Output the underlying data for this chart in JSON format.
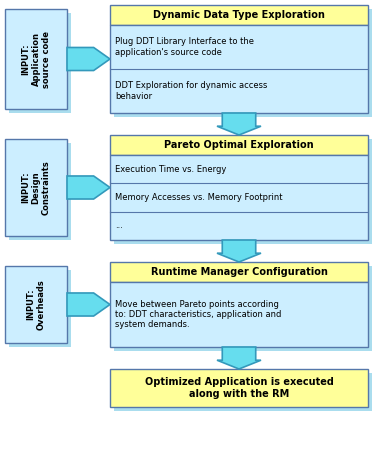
{
  "bg_color": "#ffffff",
  "box_fill_yellow": "#ffff99",
  "box_fill_cyan": "#cceeff",
  "box_shadow": "#aaddee",
  "box_border": "#5577aa",
  "arrow_color": "#66ddee",
  "arrow_edge": "#3399bb",
  "block1": {
    "title": "Dynamic Data Type Exploration",
    "lines": [
      "Plug DDT Library Interface to the\napplication's source code",
      "DDT Exploration for dynamic access\nbehavior"
    ],
    "input_label": "INPUT:\nApplication\nsource code"
  },
  "block2": {
    "title": "Pareto Optimal Exploration",
    "lines": [
      "Execution Time vs. Energy",
      "Memory Accesses vs. Memory Footprint",
      "..."
    ],
    "input_label": "INPUT:\nDesign\nConstraints"
  },
  "block3": {
    "title": "Runtime Manager Configuration",
    "lines": [
      "Move between Pareto points according\nto: DDT characteristics, application and\nsystem demands."
    ],
    "input_label": "INPUT:\nOverheads"
  },
  "block4": {
    "title": "Optimized Application is executed\nalong with the RM"
  }
}
